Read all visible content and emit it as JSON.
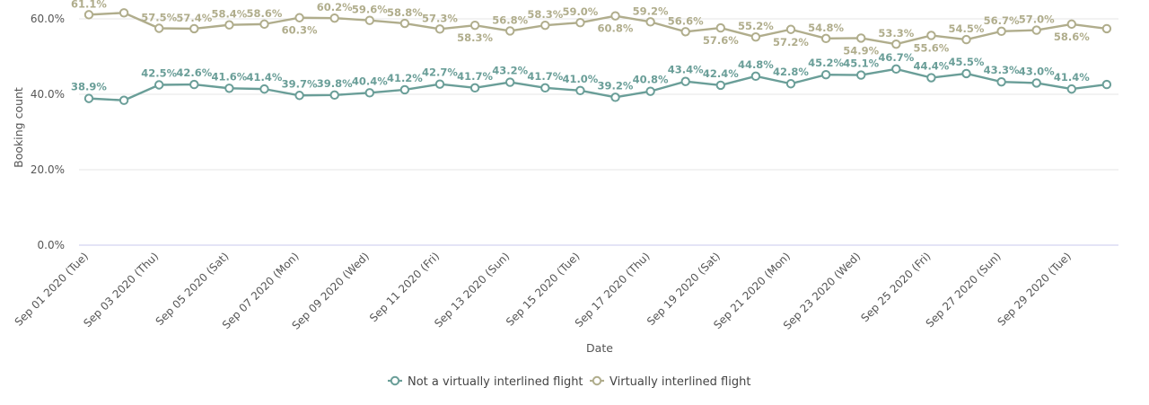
{
  "chart_data": {
    "type": "line",
    "xlabel": "Date",
    "ylabel": "Booking count",
    "ylim": [
      0,
      60
    ],
    "yticks": [
      "0.0%",
      "20.0%",
      "40.0%",
      "60.0%"
    ],
    "ytick_values": [
      0,
      20,
      40,
      60
    ],
    "x": [
      "Sep 01 2020 (Tue)",
      "Sep 02 2020 (Wed)",
      "Sep 03 2020 (Thu)",
      "Sep 04 2020 (Fri)",
      "Sep 05 2020 (Sat)",
      "Sep 06 2020 (Sun)",
      "Sep 07 2020 (Mon)",
      "Sep 08 2020 (Tue)",
      "Sep 09 2020 (Wed)",
      "Sep 10 2020 (Thu)",
      "Sep 11 2020 (Fri)",
      "Sep 12 2020 (Sat)",
      "Sep 13 2020 (Sun)",
      "Sep 14 2020 (Mon)",
      "Sep 15 2020 (Tue)",
      "Sep 16 2020 (Wed)",
      "Sep 17 2020 (Thu)",
      "Sep 18 2020 (Fri)",
      "Sep 19 2020 (Sat)",
      "Sep 20 2020 (Sun)",
      "Sep 21 2020 (Mon)",
      "Sep 22 2020 (Tue)",
      "Sep 23 2020 (Wed)",
      "Sep 24 2020 (Thu)",
      "Sep 25 2020 (Fri)",
      "Sep 26 2020 (Sat)",
      "Sep 27 2020 (Sun)",
      "Sep 28 2020 (Mon)",
      "Sep 29 2020 (Tue)",
      "Sep 30 2020 (Wed)"
    ],
    "x_tick_labels_shown": [
      "Sep 01 2020 (Tue)",
      "Sep 03 2020 (Thu)",
      "Sep 05 2020 (Sat)",
      "Sep 07 2020 (Mon)",
      "Sep 09 2020 (Wed)",
      "Sep 11 2020 (Fri)",
      "Sep 13 2020 (Sun)",
      "Sep 15 2020 (Tue)",
      "Sep 17 2020 (Thu)",
      "Sep 19 2020 (Sat)",
      "Sep 21 2020 (Mon)",
      "Sep 23 2020 (Wed)",
      "Sep 25 2020 (Fri)",
      "Sep 27 2020 (Sun)",
      "Sep 29 2020 (Tue)"
    ],
    "series": [
      {
        "name": "Not a virtually interlined flight",
        "color": "#6a9e98",
        "values": [
          38.9,
          38.4,
          42.5,
          42.6,
          41.6,
          41.4,
          39.7,
          39.8,
          40.4,
          41.2,
          42.7,
          41.7,
          43.2,
          41.7,
          41.0,
          39.2,
          40.8,
          43.4,
          42.4,
          44.8,
          42.8,
          45.2,
          45.1,
          46.7,
          44.4,
          45.5,
          43.3,
          43.0,
          41.4,
          42.6
        ],
        "labels": [
          "38.9%",
          "",
          "42.5%",
          "42.6%",
          "41.6%",
          "41.4%",
          "39.7%",
          "39.8%",
          "40.4%",
          "41.2%",
          "42.7%",
          "41.7%",
          "43.2%",
          "41.7%",
          "41.0%",
          "39.2%",
          "40.8%",
          "43.4%",
          "42.4%",
          "44.8%",
          "42.8%",
          "45.2%",
          "45.1%",
          "46.7%",
          "44.4%",
          "45.5%",
          "43.3%",
          "43.0%",
          "41.4%",
          ""
        ]
      },
      {
        "name": "Virtually interlined flight",
        "color": "#b0ad8c",
        "values": [
          61.1,
          61.6,
          57.5,
          57.4,
          58.4,
          58.6,
          60.3,
          60.2,
          59.6,
          58.8,
          57.3,
          58.3,
          56.8,
          58.3,
          59.0,
          60.8,
          59.2,
          56.6,
          57.6,
          55.2,
          57.2,
          54.8,
          54.9,
          53.3,
          55.6,
          54.5,
          56.7,
          57.0,
          58.6,
          57.4
        ],
        "labels": [
          "61.1%",
          "",
          "57.5%",
          "57.4%",
          "58.4%",
          "58.6%",
          "60.3%",
          "60.2%",
          "59.6%",
          "58.8%",
          "57.3%",
          "58.3%",
          "56.8%",
          "58.3%",
          "59.0%",
          "60.8%",
          "59.2%",
          "56.6%",
          "57.6%",
          "55.2%",
          "57.2%",
          "54.8%",
          "54.9%",
          "53.3%",
          "55.6%",
          "54.5%",
          "56.7%",
          "57.0%",
          "58.6%",
          ""
        ]
      }
    ],
    "grid": true,
    "legend_position": "bottom-center"
  }
}
